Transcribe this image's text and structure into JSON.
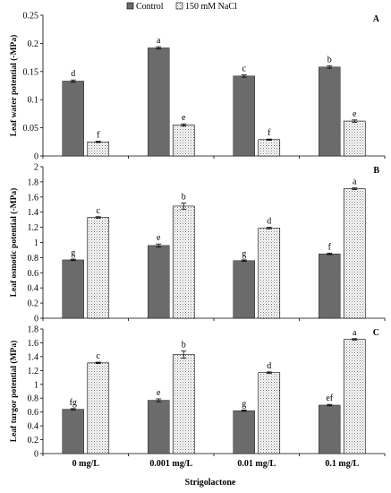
{
  "legend": [
    {
      "name": "Control",
      "pattern": "solid",
      "color": "#6b6b6b"
    },
    {
      "name": "150 mM NaCl",
      "pattern": "dotted",
      "color": "#ffffff"
    }
  ],
  "chart_data": [
    {
      "type": "bar",
      "panel": "A",
      "categories": [
        "0 mg/L",
        "0.001 mg/L",
        "0.01 mg/L",
        "0.1 mg/L"
      ],
      "ylabel": "Leaf water potential (-MPa)",
      "ylim": [
        0,
        0.25
      ],
      "yticks": [
        0,
        0.05,
        0.1,
        0.15,
        0.2,
        0.25
      ],
      "ytick_labels": [
        "0",
        "0.05",
        "0.1",
        "0.15",
        "0.2",
        "0.25"
      ],
      "series": [
        {
          "name": "Control",
          "values": [
            0.133,
            0.192,
            0.142,
            0.158
          ],
          "errors": [
            0.002,
            0.002,
            0.002,
            0.002
          ],
          "letters": [
            "d",
            "a",
            "c",
            "b"
          ]
        },
        {
          "name": "150 mM NaCl",
          "values": [
            0.025,
            0.055,
            0.029,
            0.062
          ],
          "errors": [
            0.001,
            0.002,
            0.001,
            0.002
          ],
          "letters": [
            "f",
            "e",
            "f",
            "e"
          ]
        }
      ]
    },
    {
      "type": "bar",
      "panel": "B",
      "categories": [
        "0 mg/L",
        "0.001 mg/L",
        "0.01 mg/L",
        "0.1 mg/L"
      ],
      "ylabel": "Leaf osmotic potential (-MPa)",
      "ylim": [
        0,
        2
      ],
      "yticks": [
        0,
        0.2,
        0.4,
        0.6,
        0.8,
        1,
        1.2,
        1.4,
        1.6,
        1.8,
        2
      ],
      "ytick_labels": [
        "0",
        "0.2",
        "0.4",
        "0.6",
        "0.8",
        "1",
        "1.2",
        "1.4",
        "1.6",
        "1.8",
        "2"
      ],
      "series": [
        {
          "name": "Control",
          "values": [
            0.77,
            0.96,
            0.76,
            0.85
          ],
          "errors": [
            0.01,
            0.02,
            0.01,
            0.01
          ],
          "letters": [
            "g",
            "e",
            "g",
            "f"
          ]
        },
        {
          "name": "150 mM NaCl",
          "values": [
            1.33,
            1.48,
            1.19,
            1.71
          ],
          "errors": [
            0.01,
            0.04,
            0.01,
            0.01
          ],
          "letters": [
            "c",
            "b",
            "d",
            "a"
          ]
        }
      ]
    },
    {
      "type": "bar",
      "panel": "C",
      "categories": [
        "0 mg/L",
        "0.001 mg/L",
        "0.01 mg/L",
        "0.1 mg/L"
      ],
      "ylabel": "Leaf turgor potential (MPa)",
      "xlabel": "Strigolactone",
      "ylim": [
        0,
        1.8
      ],
      "yticks": [
        0,
        0.2,
        0.4,
        0.6,
        0.8,
        1,
        1.2,
        1.4,
        1.6,
        1.8
      ],
      "ytick_labels": [
        "0",
        "0.2",
        "0.4",
        "0.6",
        "0.8",
        "1",
        "1.2",
        "1.4",
        "1.6",
        "1.8"
      ],
      "series": [
        {
          "name": "Control",
          "values": [
            0.64,
            0.77,
            0.62,
            0.7
          ],
          "errors": [
            0.01,
            0.02,
            0.01,
            0.01
          ],
          "letters": [
            "fg",
            "e",
            "g",
            "ef"
          ]
        },
        {
          "name": "150 mM NaCl",
          "values": [
            1.31,
            1.43,
            1.17,
            1.65
          ],
          "errors": [
            0.01,
            0.05,
            0.01,
            0.01
          ],
          "letters": [
            "c",
            "b",
            "d",
            "a"
          ]
        }
      ]
    }
  ]
}
